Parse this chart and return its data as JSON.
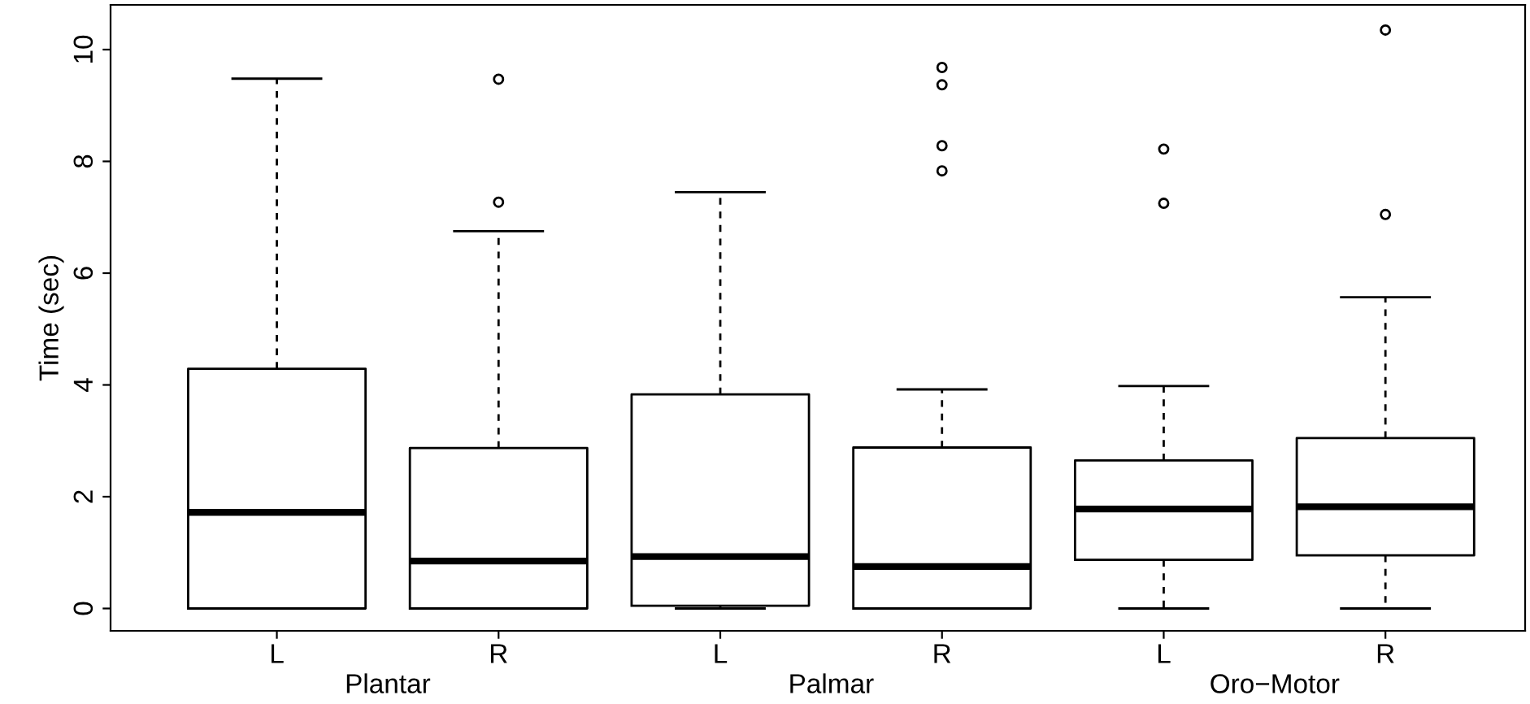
{
  "chart_data": {
    "type": "box",
    "ylabel": "Time (sec)",
    "categories": [
      "L",
      "R",
      "L",
      "R",
      "L",
      "R"
    ],
    "annotations": [
      "Plantar",
      "Palmar",
      "Oro−Motor"
    ],
    "ylim": [
      -0.4,
      10.8
    ],
    "yticks": [
      0,
      2,
      4,
      6,
      8,
      10
    ],
    "grid": false,
    "legend": false,
    "boxes": [
      {
        "low": 0,
        "q1": 0,
        "median": 1.72,
        "q3": 4.29,
        "high": 9.48
      },
      {
        "low": 0,
        "q1": 0,
        "median": 0.85,
        "q3": 2.87,
        "high": 6.75,
        "outliers": [
          7.27,
          9.47
        ]
      },
      {
        "low": 0,
        "q1": 0.05,
        "median": 0.93,
        "q3": 3.83,
        "high": 7.45
      },
      {
        "low": 0,
        "q1": 0,
        "median": 0.75,
        "q3": 2.88,
        "high": 3.92,
        "outliers": [
          7.83,
          8.28,
          9.37,
          9.68
        ]
      },
      {
        "low": 0,
        "q1": 0.87,
        "median": 1.78,
        "q3": 2.65,
        "high": 3.98,
        "outliers": [
          7.25,
          8.22
        ]
      },
      {
        "low": 0,
        "q1": 0.95,
        "median": 1.82,
        "q3": 3.05,
        "high": 5.57,
        "outliers": [
          7.05,
          10.35
        ]
      }
    ]
  }
}
